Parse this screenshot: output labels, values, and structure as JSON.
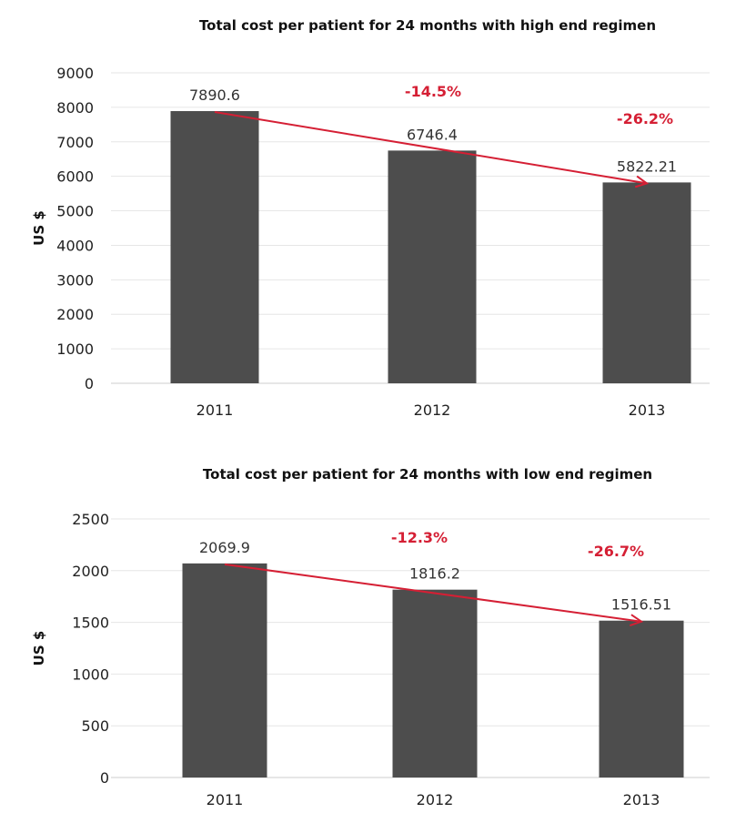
{
  "colors": {
    "bar": "#4d4d4d",
    "accent": "#d51f34",
    "grid": "#e6e6e6"
  },
  "chart_data": [
    {
      "type": "bar",
      "title": "Total cost per patient for 24 months with high end regimen",
      "ylabel": "US $",
      "xlabel": "",
      "categories": [
        "2011",
        "2012",
        "2013"
      ],
      "values": [
        7890.6,
        6746.4,
        5822.21
      ],
      "value_labels": [
        "7890.6",
        "6746.4",
        "5822.21"
      ],
      "ylim": [
        0,
        9000
      ],
      "yticks": [
        0,
        1000,
        2000,
        3000,
        4000,
        5000,
        6000,
        7000,
        8000,
        9000
      ],
      "grid": true,
      "annotations": [
        "-14.5%",
        "-26.2%"
      ],
      "trend_arrow": {
        "from": "2011",
        "to": "2013"
      }
    },
    {
      "type": "bar",
      "title": "Total cost per patient for 24 months with low end regimen",
      "ylabel": "US $",
      "xlabel": "",
      "categories": [
        "2011",
        "2012",
        "2013"
      ],
      "values": [
        2069.9,
        1816.2,
        1516.51
      ],
      "value_labels": [
        "2069.9",
        "1816.2",
        "1516.51"
      ],
      "ylim": [
        0,
        2500
      ],
      "yticks": [
        0,
        500,
        1000,
        1500,
        2000,
        2500
      ],
      "grid": true,
      "annotations": [
        "-12.3%",
        "-26.7%"
      ],
      "trend_arrow": {
        "from": "2011",
        "to": "2013"
      }
    }
  ]
}
